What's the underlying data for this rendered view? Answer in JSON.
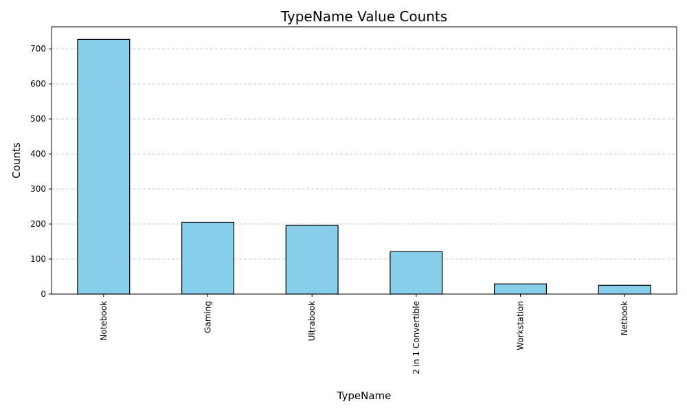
{
  "chart_data": {
    "type": "bar",
    "title": "TypeName Value Counts",
    "xlabel": "TypeName",
    "ylabel": "Counts",
    "categories": [
      "Notebook",
      "Gaming",
      "Ultrabook",
      "2 in 1 Convertible",
      "Workstation",
      "Netbook"
    ],
    "values": [
      727,
      205,
      196,
      121,
      29,
      25
    ],
    "ylim": [
      0,
      763
    ],
    "yticks": [
      0,
      100,
      200,
      300,
      400,
      500,
      600,
      700
    ],
    "grid": "y-dashed",
    "legend": "none",
    "colors": {
      "bar_fill": "#87ceeb",
      "bar_edge": "#000000",
      "grid": "#c8c8c8"
    }
  }
}
